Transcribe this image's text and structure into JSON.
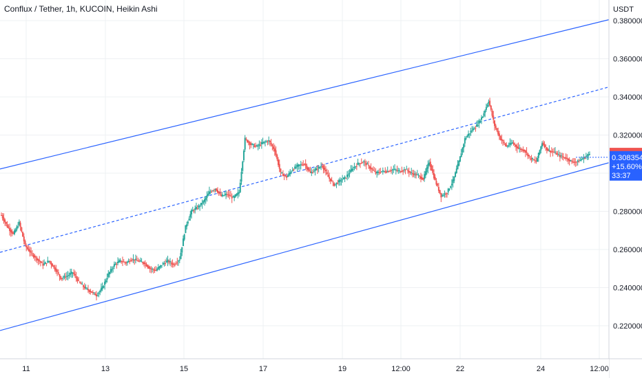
{
  "header": {
    "title": "Conflux / Tether, 1h, KUCOIN, Heikin Ashi"
  },
  "colors": {
    "up": "#26a69a",
    "down": "#ef5350",
    "channel": "#2962ff",
    "grid": "#eef0f3",
    "price_tag_red": "#ef5350",
    "price_tag_blue": "#2962ff"
  },
  "chart_data": {
    "type": "candlestick",
    "style": "Heikin Ashi",
    "currency": "USDT",
    "y_ticks": [
      "0.380000",
      "0.360000",
      "0.340000",
      "0.320000",
      "0.300000",
      "0.280000",
      "0.260000",
      "0.240000",
      "0.220000"
    ],
    "ylim": [
      0.2,
      0.382
    ],
    "x_ticks": [
      "11",
      "13",
      "15",
      "17",
      "19",
      "12:00",
      "22",
      "24",
      "12:00"
    ],
    "price_tags": {
      "last": "0.310059",
      "current": "0.308354",
      "change": "+15.60%",
      "countdown": "33:37"
    },
    "channel": {
      "upper": [
        [
          0,
          0.3022
        ],
        [
          884,
          0.3805
        ]
      ],
      "middle": [
        [
          0,
          0.2585
        ],
        [
          884,
          0.3452
        ]
      ],
      "lower": [
        [
          0,
          0.2175
        ],
        [
          884,
          0.3055
        ]
      ]
    },
    "candles_x_range": [
      0,
      858
    ],
    "closes": [
      0.278,
      0.272,
      0.268,
      0.274,
      0.262,
      0.258,
      0.255,
      0.252,
      0.254,
      0.25,
      0.245,
      0.246,
      0.248,
      0.243,
      0.24,
      0.238,
      0.236,
      0.24,
      0.247,
      0.252,
      0.254,
      0.253,
      0.255,
      0.254,
      0.253,
      0.25,
      0.249,
      0.252,
      0.254,
      0.252,
      0.255,
      0.272,
      0.28,
      0.282,
      0.285,
      0.29,
      0.292,
      0.288,
      0.289,
      0.287,
      0.29,
      0.318,
      0.315,
      0.314,
      0.316,
      0.317,
      0.312,
      0.3,
      0.298,
      0.302,
      0.304,
      0.305,
      0.3,
      0.302,
      0.304,
      0.298,
      0.294,
      0.296,
      0.298,
      0.302,
      0.305,
      0.306,
      0.303,
      0.3,
      0.301,
      0.301,
      0.302,
      0.301,
      0.302,
      0.3,
      0.299,
      0.297,
      0.306,
      0.296,
      0.288,
      0.29,
      0.296,
      0.306,
      0.318,
      0.322,
      0.325,
      0.33,
      0.338,
      0.325,
      0.318,
      0.314,
      0.316,
      0.313,
      0.312,
      0.308,
      0.306,
      0.316,
      0.312,
      0.311,
      0.309,
      0.308,
      0.306,
      0.306,
      0.308,
      0.31
    ]
  }
}
